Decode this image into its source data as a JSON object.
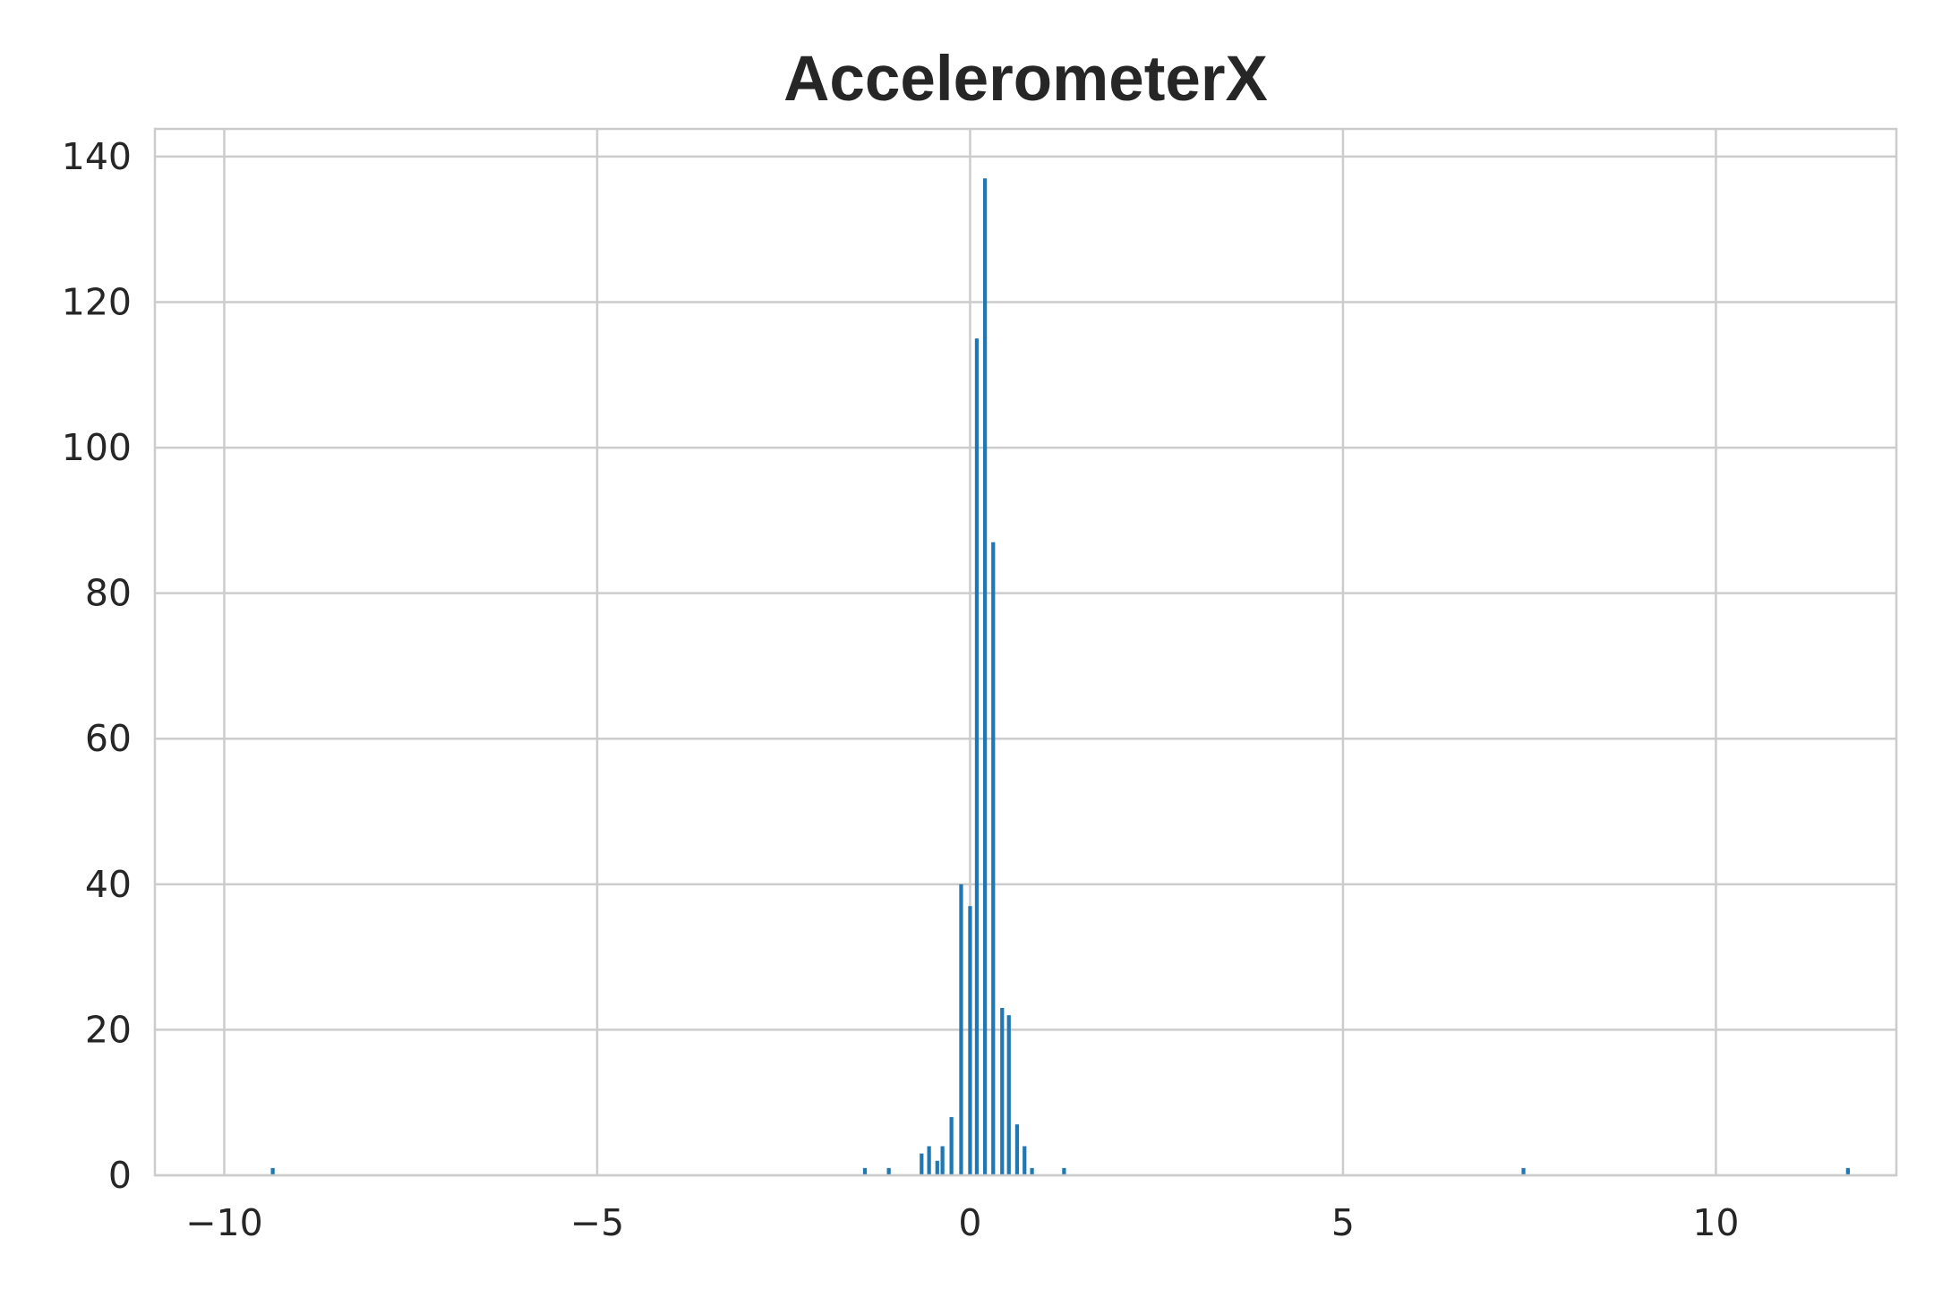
{
  "chart_data": {
    "type": "bar",
    "title": "AccelerometerX",
    "xlabel": "",
    "ylabel": "",
    "xlim": [
      -10.93,
      12.42
    ],
    "ylim": [
      0,
      143.8
    ],
    "grid": true,
    "x_ticks": [
      -10,
      -5,
      0,
      5,
      10
    ],
    "x_tick_labels": [
      "−10",
      "−5",
      "0",
      "5",
      "10"
    ],
    "y_ticks": [
      0,
      20,
      40,
      60,
      80,
      100,
      120,
      140
    ],
    "y_tick_labels": [
      "0",
      "20",
      "40",
      "60",
      "80",
      "100",
      "120",
      "140"
    ],
    "bin_width": 0.0705,
    "bar_color": "#1f77b4",
    "bins": [
      {
        "x": -9.35,
        "count": 1
      },
      {
        "x": -1.41,
        "count": 1
      },
      {
        "x": -1.09,
        "count": 1
      },
      {
        "x": -0.65,
        "count": 3
      },
      {
        "x": -0.55,
        "count": 4
      },
      {
        "x": -0.44,
        "count": 2
      },
      {
        "x": -0.37,
        "count": 4
      },
      {
        "x": -0.25,
        "count": 8
      },
      {
        "x": -0.12,
        "count": 40
      },
      {
        "x": 0.0,
        "count": 37
      },
      {
        "x": 0.09,
        "count": 115
      },
      {
        "x": 0.2,
        "count": 137
      },
      {
        "x": 0.31,
        "count": 87
      },
      {
        "x": 0.43,
        "count": 23
      },
      {
        "x": 0.52,
        "count": 22
      },
      {
        "x": 0.63,
        "count": 7
      },
      {
        "x": 0.73,
        "count": 4
      },
      {
        "x": 0.83,
        "count": 1
      },
      {
        "x": 1.26,
        "count": 1
      },
      {
        "x": 7.42,
        "count": 1
      },
      {
        "x": 11.77,
        "count": 1
      }
    ]
  }
}
